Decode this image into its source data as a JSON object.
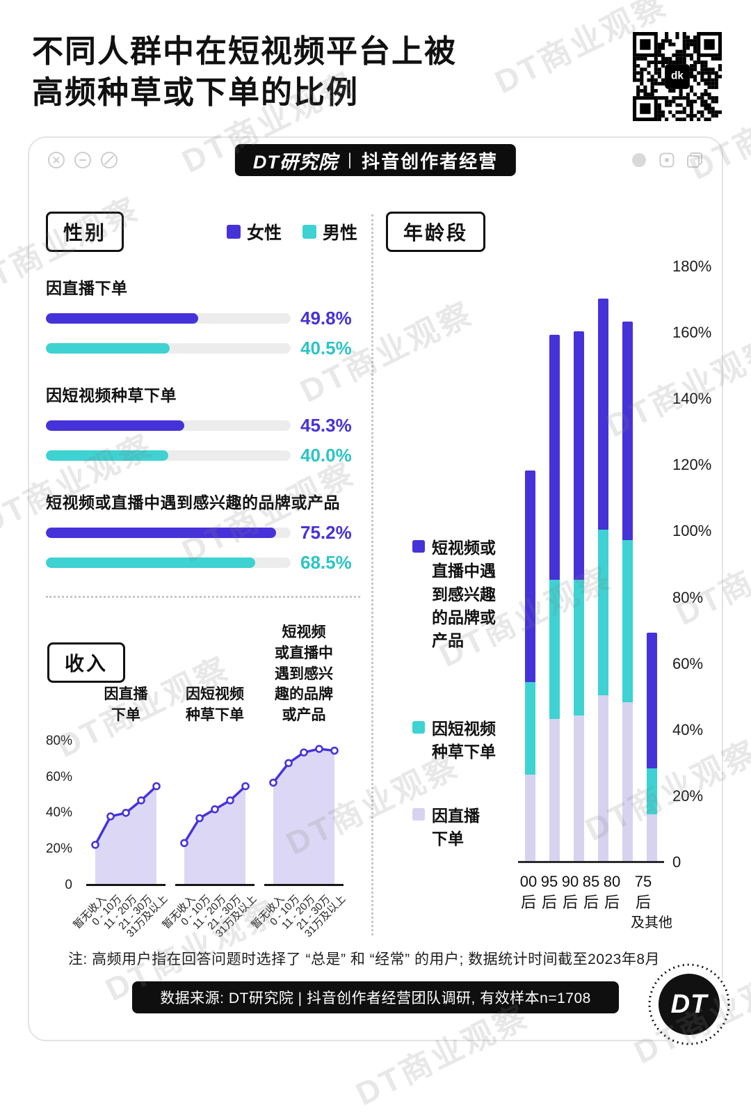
{
  "page": {
    "title_line1": "不同人群中在短视频平台上被",
    "title_line2": "高频种草或下单的比例",
    "watermark_text": "DT商业观察",
    "qr_logo": "dk"
  },
  "window": {
    "badge_brand": "DT研究院",
    "badge_separator": "|",
    "badge_subtitle": "抖音创作者经营"
  },
  "section_labels": {
    "gender": "性别",
    "income": "收入",
    "age": "年龄段"
  },
  "colors": {
    "purple": "#4632d9",
    "cyan": "#3ed2d2",
    "lavender": "#d7d2f0",
    "area_fill": "#dcd7f4",
    "bar_track": "#ececec",
    "black": "#0f0f0f"
  },
  "chart_data": [
    {
      "id": "gender-bars",
      "type": "bar",
      "orientation": "horizontal",
      "section": "性别",
      "categories": [
        "因直播下单",
        "因短视频种草下单",
        "短视频或直播中遇到感兴趣的品牌或产品"
      ],
      "xlim": [
        0,
        80
      ],
      "series": [
        {
          "name": "女性",
          "color": "#4632d9",
          "values": [
            49.8,
            45.3,
            75.2
          ],
          "labels": [
            "49.8%",
            "45.3%",
            "75.2%"
          ]
        },
        {
          "name": "男性",
          "color": "#3ed2d2",
          "values": [
            40.5,
            40.0,
            68.5
          ],
          "labels": [
            "40.5%",
            "40.0%",
            "68.5%"
          ]
        }
      ]
    },
    {
      "id": "income-lines",
      "type": "line",
      "section": "收入",
      "categories": [
        "暂无收入",
        "0 - 10万",
        "11 - 20万",
        "21 - 30万",
        "31万及以上"
      ],
      "ylim": [
        0,
        85
      ],
      "y_ticks": [
        {
          "v": 80,
          "label": "80%"
        },
        {
          "v": 60,
          "label": "60%"
        },
        {
          "v": 40,
          "label": "40%"
        },
        {
          "v": 20,
          "label": "20%"
        },
        {
          "v": 0,
          "label": "0"
        }
      ],
      "line_color": "#4632d9",
      "area_color": "#dcd7f4",
      "series": [
        {
          "name": "因直播\n下单",
          "values": [
            22,
            38,
            40,
            47,
            55
          ]
        },
        {
          "name": "因短视频\n种草下单",
          "values": [
            23,
            37,
            42,
            47,
            55
          ]
        },
        {
          "name": "短视频\n或直播中\n遇到感兴\n趣的品牌\n或产品",
          "values": [
            57,
            68,
            74,
            76,
            75
          ]
        }
      ]
    },
    {
      "id": "age-stacked-bars",
      "type": "bar",
      "stacked": true,
      "section": "年龄段",
      "categories": [
        [
          "00",
          "后"
        ],
        [
          "95",
          "后"
        ],
        [
          "90",
          "后"
        ],
        [
          "85",
          "后"
        ],
        [
          "80",
          "后"
        ],
        [
          "75",
          "后",
          "及其他"
        ]
      ],
      "ylim": [
        0,
        180
      ],
      "y_ticks": [
        {
          "v": 180,
          "label": "180%"
        },
        {
          "v": 160,
          "label": "160%"
        },
        {
          "v": 140,
          "label": "140%"
        },
        {
          "v": 120,
          "label": "120%"
        },
        {
          "v": 100,
          "label": "100%"
        },
        {
          "v": 80,
          "label": "80%"
        },
        {
          "v": 60,
          "label": "60%"
        },
        {
          "v": 40,
          "label": "40%"
        },
        {
          "v": 20,
          "label": "20%"
        },
        {
          "v": 0,
          "label": "0"
        }
      ],
      "series": [
        {
          "name": "因直播下单",
          "color": "#d7d2f0",
          "values": [
            26,
            43,
            44,
            50,
            48,
            14
          ]
        },
        {
          "name": "因短视频种草下单",
          "color": "#3ed2d2",
          "values": [
            28,
            42,
            41,
            50,
            49,
            14
          ]
        },
        {
          "name": "短视频或直播中遇到感兴趣的品牌或产品",
          "color": "#4632d9",
          "values": [
            64,
            74,
            75,
            70,
            66,
            41
          ]
        }
      ],
      "legend": [
        {
          "series": 2,
          "label": "短视频或\n直播中遇\n到感兴趣\n的品牌或\n产品"
        },
        {
          "series": 1,
          "label": "因短视频\n种草下单"
        },
        {
          "series": 0,
          "label": "因直播\n下单"
        }
      ]
    }
  ],
  "footer": {
    "note": "注: 高频用户指在回答问题时选择了 “总是” 和 “经常” 的用户; 数据统计时间截至2023年8月",
    "source": "数据来源: DT研究院  |  抖音创作者经营团队调研, 有效样本n=1708",
    "logo_text": "DT"
  }
}
